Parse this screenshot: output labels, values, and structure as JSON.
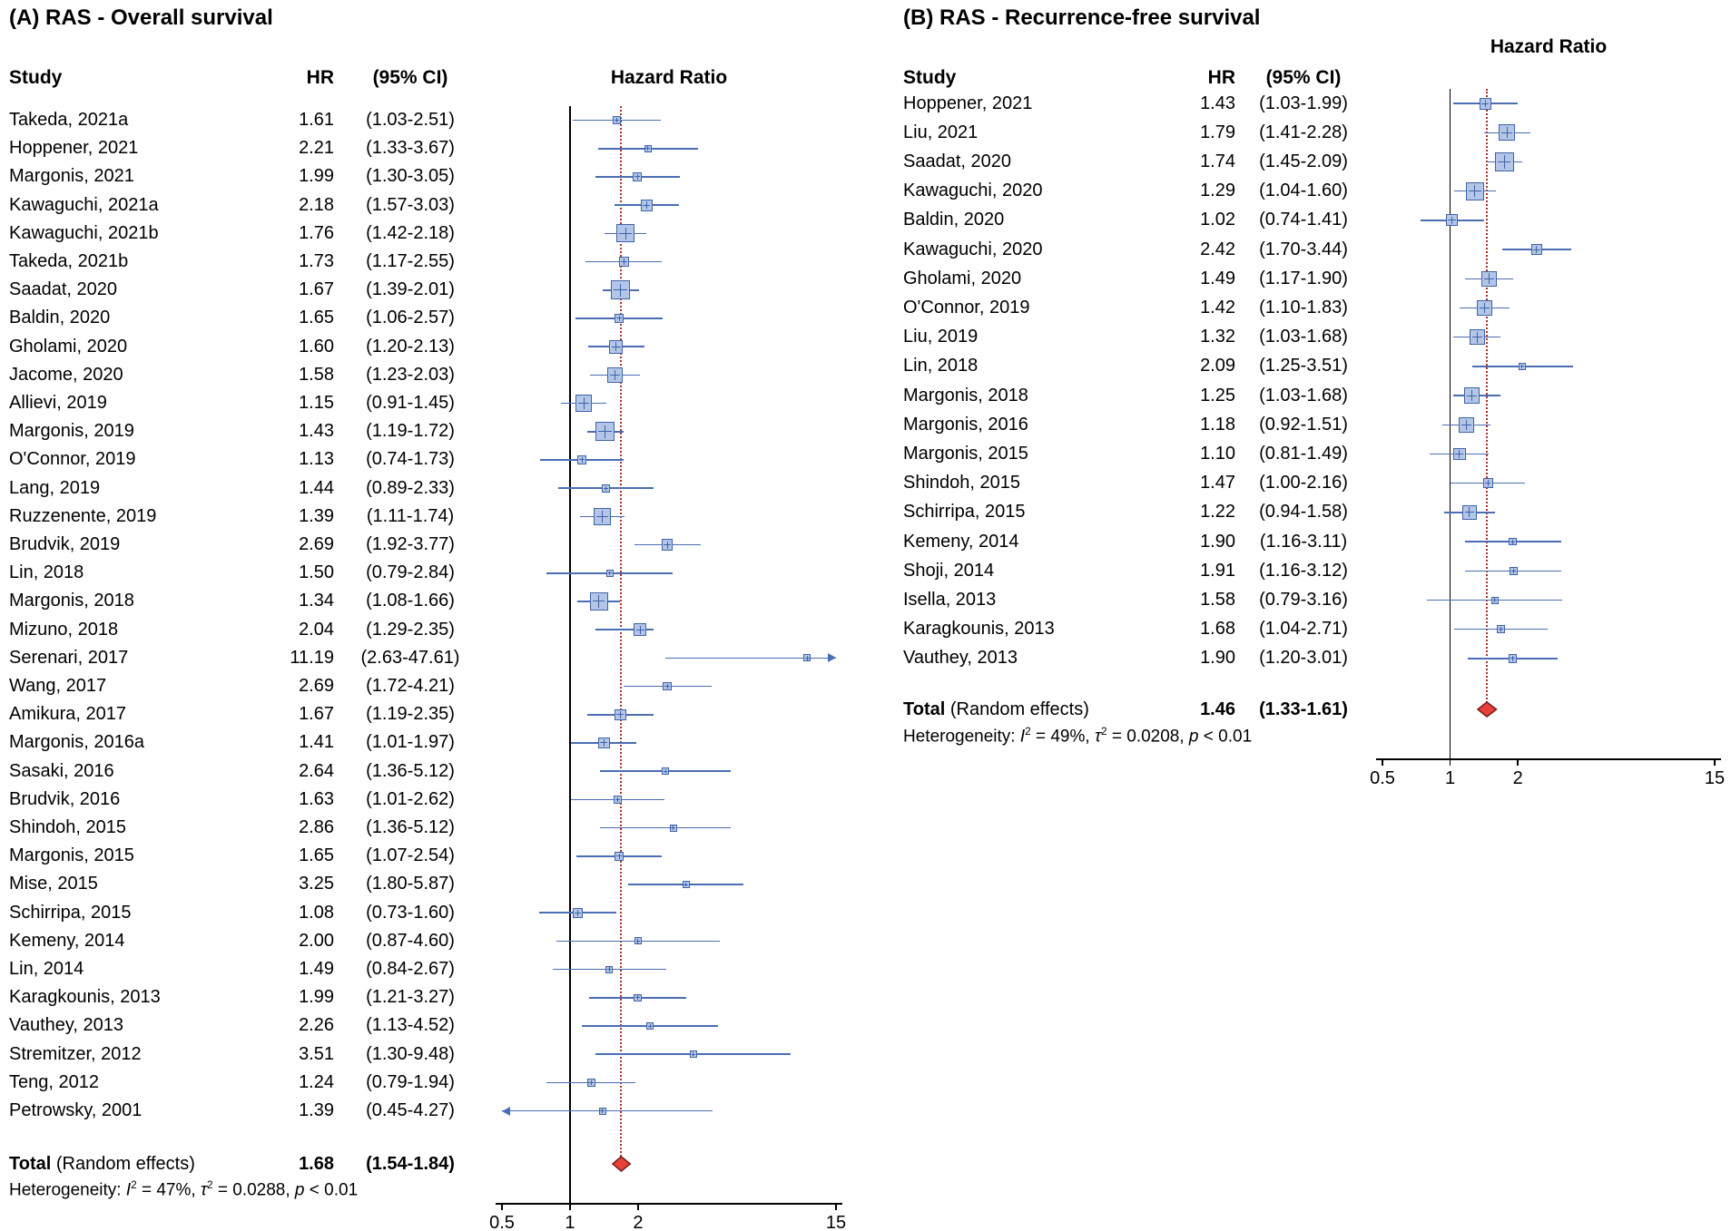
{
  "colors": {
    "square_fill": "#b3c6e7",
    "square_border": "#3f62a7",
    "ci_line": "#4a6db3",
    "reference_line": "#000000",
    "pooled_dotted_line": "#a93226",
    "diamond_fill": "#e8413c",
    "diamond_border": "#7a1b15"
  },
  "chart_data": [
    {
      "type": "forest",
      "panel_label": "A",
      "title": "(A) RAS - Overall survival",
      "columns": {
        "study": "Study",
        "hr": "HR",
        "ci": "(95% CI)",
        "plot": "Hazard Ratio"
      },
      "x_axis": {
        "scale": "log",
        "ticks": [
          0.5,
          1,
          2,
          15
        ],
        "min": 0.5,
        "max": 15
      },
      "ref_line": 1,
      "studies": [
        {
          "study": "Takeda, 2021a",
          "hr": 1.61,
          "ci_low": 1.03,
          "ci_high": 2.51
        },
        {
          "study": "Hoppener, 2021",
          "hr": 2.21,
          "ci_low": 1.33,
          "ci_high": 3.67
        },
        {
          "study": "Margonis, 2021",
          "hr": 1.99,
          "ci_low": 1.3,
          "ci_high": 3.05
        },
        {
          "study": "Kawaguchi, 2021a",
          "hr": 2.18,
          "ci_low": 1.57,
          "ci_high": 3.03
        },
        {
          "study": "Kawaguchi, 2021b",
          "hr": 1.76,
          "ci_low": 1.42,
          "ci_high": 2.18
        },
        {
          "study": "Takeda, 2021b",
          "hr": 1.73,
          "ci_low": 1.17,
          "ci_high": 2.55
        },
        {
          "study": "Saadat, 2020",
          "hr": 1.67,
          "ci_low": 1.39,
          "ci_high": 2.01
        },
        {
          "study": "Baldin, 2020",
          "hr": 1.65,
          "ci_low": 1.06,
          "ci_high": 2.57
        },
        {
          "study": "Gholami, 2020",
          "hr": 1.6,
          "ci_low": 1.2,
          "ci_high": 2.13
        },
        {
          "study": "Jacome, 2020",
          "hr": 1.58,
          "ci_low": 1.23,
          "ci_high": 2.03
        },
        {
          "study": "Allievi, 2019",
          "hr": 1.15,
          "ci_low": 0.91,
          "ci_high": 1.45
        },
        {
          "study": "Margonis, 2019",
          "hr": 1.43,
          "ci_low": 1.19,
          "ci_high": 1.72
        },
        {
          "study": "O'Connor, 2019",
          "hr": 1.13,
          "ci_low": 0.74,
          "ci_high": 1.73
        },
        {
          "study": "Lang, 2019",
          "hr": 1.44,
          "ci_low": 0.89,
          "ci_high": 2.33
        },
        {
          "study": "Ruzzenente, 2019",
          "hr": 1.39,
          "ci_low": 1.11,
          "ci_high": 1.74
        },
        {
          "study": "Brudvik, 2019",
          "hr": 2.69,
          "ci_low": 1.92,
          "ci_high": 3.77
        },
        {
          "study": "Lin, 2018",
          "hr": 1.5,
          "ci_low": 0.79,
          "ci_high": 2.84
        },
        {
          "study": "Margonis, 2018",
          "hr": 1.34,
          "ci_low": 1.08,
          "ci_high": 1.66
        },
        {
          "study": "Mizuno, 2018",
          "hr": 2.04,
          "ci_low": 1.29,
          "ci_high": 2.35
        },
        {
          "study": "Serenari, 2017",
          "hr": 11.19,
          "ci_low": 2.63,
          "ci_high": 47.61
        },
        {
          "study": "Wang, 2017",
          "hr": 2.69,
          "ci_low": 1.72,
          "ci_high": 4.21
        },
        {
          "study": "Amikura, 2017",
          "hr": 1.67,
          "ci_low": 1.19,
          "ci_high": 2.35
        },
        {
          "study": "Margonis, 2016a",
          "hr": 1.41,
          "ci_low": 1.01,
          "ci_high": 1.97
        },
        {
          "study": "Sasaki, 2016",
          "hr": 2.64,
          "ci_low": 1.36,
          "ci_high": 5.12
        },
        {
          "study": "Brudvik, 2016",
          "hr": 1.63,
          "ci_low": 1.01,
          "ci_high": 2.62
        },
        {
          "study": "Shindoh, 2015",
          "hr": 2.86,
          "ci_low": 1.36,
          "ci_high": 5.12
        },
        {
          "study": "Margonis, 2015",
          "hr": 1.65,
          "ci_low": 1.07,
          "ci_high": 2.54
        },
        {
          "study": "Mise, 2015",
          "hr": 3.25,
          "ci_low": 1.8,
          "ci_high": 5.87
        },
        {
          "study": "Schirripa, 2015",
          "hr": 1.08,
          "ci_low": 0.73,
          "ci_high": 1.6
        },
        {
          "study": "Kemeny, 2014",
          "hr": 2.0,
          "ci_low": 0.87,
          "ci_high": 4.6
        },
        {
          "study": "Lin, 2014",
          "hr": 1.49,
          "ci_low": 0.84,
          "ci_high": 2.67
        },
        {
          "study": "Karagkounis, 2013",
          "hr": 1.99,
          "ci_low": 1.21,
          "ci_high": 3.27
        },
        {
          "study": "Vauthey, 2013",
          "hr": 2.26,
          "ci_low": 1.13,
          "ci_high": 4.52
        },
        {
          "study": "Stremitzer, 2012",
          "hr": 3.51,
          "ci_low": 1.3,
          "ci_high": 9.48
        },
        {
          "study": "Teng, 2012",
          "hr": 1.24,
          "ci_low": 0.79,
          "ci_high": 1.94
        },
        {
          "study": "Petrowsky, 2001",
          "hr": 1.39,
          "ci_low": 0.45,
          "ci_high": 4.27
        }
      ],
      "total": {
        "label": "Total",
        "method": "(Random effects)",
        "hr": 1.68,
        "ci_low": 1.54,
        "ci_high": 1.84
      },
      "heterogeneity": {
        "i2": "47%",
        "tau2": "0.0288",
        "p": "< 0.01"
      }
    },
    {
      "type": "forest",
      "panel_label": "B",
      "title": "(B) RAS - Recurrence-free survival",
      "columns": {
        "study": "Study",
        "hr": "HR",
        "ci": "(95% CI)",
        "plot": "Hazard Ratio"
      },
      "x_axis": {
        "scale": "log",
        "ticks": [
          0.5,
          1,
          2,
          15
        ],
        "min": 0.5,
        "max": 15
      },
      "ref_line": 1,
      "studies": [
        {
          "study": "Hoppener, 2021",
          "hr": 1.43,
          "ci_low": 1.03,
          "ci_high": 1.99
        },
        {
          "study": "Liu, 2021",
          "hr": 1.79,
          "ci_low": 1.41,
          "ci_high": 2.28
        },
        {
          "study": "Saadat, 2020",
          "hr": 1.74,
          "ci_low": 1.45,
          "ci_high": 2.09
        },
        {
          "study": "Kawaguchi, 2020",
          "hr": 1.29,
          "ci_low": 1.04,
          "ci_high": 1.6
        },
        {
          "study": "Baldin, 2020",
          "hr": 1.02,
          "ci_low": 0.74,
          "ci_high": 1.41
        },
        {
          "study": "Kawaguchi, 2020",
          "hr": 2.42,
          "ci_low": 1.7,
          "ci_high": 3.44
        },
        {
          "study": "Gholami, 2020",
          "hr": 1.49,
          "ci_low": 1.17,
          "ci_high": 1.9
        },
        {
          "study": "O'Connor, 2019",
          "hr": 1.42,
          "ci_low": 1.1,
          "ci_high": 1.83
        },
        {
          "study": "Liu, 2019",
          "hr": 1.32,
          "ci_low": 1.03,
          "ci_high": 1.68
        },
        {
          "study": "Lin, 2018",
          "hr": 2.09,
          "ci_low": 1.25,
          "ci_high": 3.51
        },
        {
          "study": "Margonis, 2018",
          "hr": 1.25,
          "ci_low": 1.03,
          "ci_high": 1.68
        },
        {
          "study": "Margonis, 2016",
          "hr": 1.18,
          "ci_low": 0.92,
          "ci_high": 1.51
        },
        {
          "study": "Margonis, 2015",
          "hr": 1.1,
          "ci_low": 0.81,
          "ci_high": 1.49
        },
        {
          "study": "Shindoh, 2015",
          "hr": 1.47,
          "ci_low": 1.0,
          "ci_high": 2.16
        },
        {
          "study": "Schirripa, 2015",
          "hr": 1.22,
          "ci_low": 0.94,
          "ci_high": 1.58
        },
        {
          "study": "Kemeny, 2014",
          "hr": 1.9,
          "ci_low": 1.16,
          "ci_high": 3.11
        },
        {
          "study": "Shoji, 2014",
          "hr": 1.91,
          "ci_low": 1.16,
          "ci_high": 3.12
        },
        {
          "study": "Isella, 2013",
          "hr": 1.58,
          "ci_low": 0.79,
          "ci_high": 3.16
        },
        {
          "study": "Karagkounis, 2013",
          "hr": 1.68,
          "ci_low": 1.04,
          "ci_high": 2.71
        },
        {
          "study": "Vauthey, 2013",
          "hr": 1.9,
          "ci_low": 1.2,
          "ci_high": 3.01
        }
      ],
      "total": {
        "label": "Total",
        "method": "(Random effects)",
        "hr": 1.46,
        "ci_low": 1.33,
        "ci_high": 1.61
      },
      "heterogeneity": {
        "i2": "49%",
        "tau2": "0.0208",
        "p": "< 0.01"
      }
    }
  ]
}
